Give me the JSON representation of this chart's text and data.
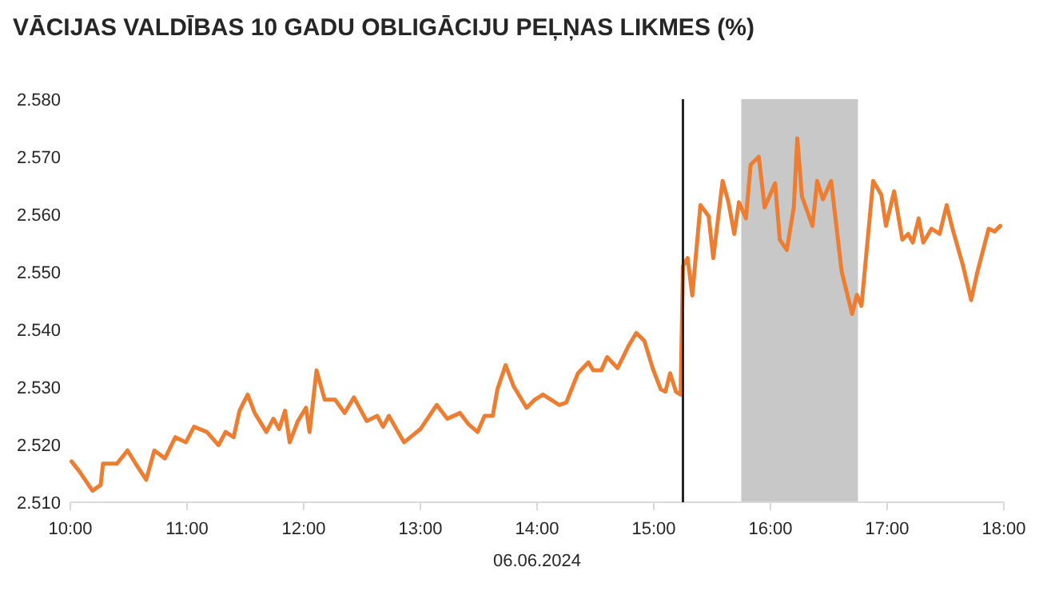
{
  "chart_data": {
    "type": "line",
    "title": "VĀCIJAS VALDĪBAS 10 GADU OBLIGĀCIJU PEĻŅAS LIKMES (%)",
    "xlabel": "06.06.2024",
    "x": [
      10.01,
      10.08,
      10.19,
      10.26,
      10.28,
      10.4,
      10.49,
      10.56,
      10.65,
      10.72,
      10.81,
      10.9,
      10.99,
      11.06,
      11.17,
      11.27,
      11.33,
      11.4,
      11.45,
      11.52,
      11.58,
      11.68,
      11.74,
      11.79,
      11.84,
      11.88,
      11.95,
      12.02,
      12.05,
      12.11,
      12.18,
      12.27,
      12.35,
      12.43,
      12.54,
      12.63,
      12.68,
      12.73,
      12.86,
      13.0,
      13.14,
      13.23,
      13.34,
      13.41,
      13.49,
      13.55,
      13.62,
      13.66,
      13.73,
      13.8,
      13.91,
      13.98,
      14.05,
      14.19,
      14.25,
      14.35,
      14.44,
      14.48,
      14.55,
      14.6,
      14.69,
      14.78,
      14.85,
      14.92,
      14.99,
      15.06,
      15.1,
      15.14,
      15.19,
      15.23,
      15.25,
      15.29,
      15.33,
      15.4,
      15.47,
      15.51,
      15.59,
      15.64,
      15.69,
      15.73,
      15.79,
      15.83,
      15.9,
      15.95,
      16.04,
      16.08,
      16.14,
      16.2,
      16.23,
      16.27,
      16.36,
      16.4,
      16.45,
      16.52,
      16.61,
      16.7,
      16.74,
      16.78,
      16.88,
      16.95,
      16.99,
      17.06,
      17.13,
      17.18,
      17.22,
      17.27,
      17.31,
      17.38,
      17.45,
      17.51,
      17.56,
      17.65,
      17.72,
      17.77,
      17.87,
      17.92,
      17.97
    ],
    "series": [
      {
        "color": "#ed7d31",
        "values": [
          2.5171,
          2.5153,
          2.512,
          2.513,
          2.5167,
          2.5167,
          2.519,
          2.5167,
          2.5139,
          2.519,
          2.5176,
          2.5213,
          2.5204,
          2.5231,
          2.5222,
          2.5199,
          2.5222,
          2.5213,
          2.5259,
          2.5287,
          2.5255,
          2.5222,
          2.5245,
          2.5227,
          2.5259,
          2.5204,
          2.5241,
          2.5264,
          2.5222,
          2.5329,
          2.5278,
          2.5278,
          2.5255,
          2.5282,
          2.5241,
          2.525,
          2.5231,
          2.525,
          2.5204,
          2.5227,
          2.5269,
          2.5245,
          2.5255,
          2.5236,
          2.5222,
          2.525,
          2.525,
          2.5296,
          2.5338,
          2.5301,
          2.5264,
          2.5278,
          2.5287,
          2.5269,
          2.5273,
          2.5324,
          2.5343,
          2.5329,
          2.5329,
          2.5352,
          2.5333,
          2.537,
          2.5394,
          2.538,
          2.5333,
          2.5296,
          2.5292,
          2.5324,
          2.5292,
          2.5287,
          2.551,
          2.5524,
          2.5459,
          2.5616,
          2.5597,
          2.5524,
          2.5658,
          2.5621,
          2.5566,
          2.5621,
          2.5593,
          2.5686,
          2.57,
          2.5612,
          2.5654,
          2.5556,
          2.5538,
          2.5612,
          2.5732,
          2.5631,
          2.558,
          2.5658,
          2.5626,
          2.5658,
          2.5501,
          2.5427,
          2.546,
          2.5441,
          2.5658,
          2.5634,
          2.558,
          2.564,
          2.5556,
          2.5566,
          2.5551,
          2.5593,
          2.5551,
          2.5575,
          2.5566,
          2.5616,
          2.5575,
          2.5511,
          2.5451,
          2.5497,
          2.5575,
          2.557,
          2.558
        ]
      }
    ],
    "xlim": [
      10,
      18
    ],
    "xticks": [
      {
        "value": 10,
        "label": "10:00"
      },
      {
        "value": 11,
        "label": "11:00"
      },
      {
        "value": 12,
        "label": "12:00"
      },
      {
        "value": 13,
        "label": "13:00"
      },
      {
        "value": 14,
        "label": "14:00"
      },
      {
        "value": 15,
        "label": "15:00"
      },
      {
        "value": 16,
        "label": "16:00"
      },
      {
        "value": 17,
        "label": "17:00"
      },
      {
        "value": 18,
        "label": "18:00"
      }
    ],
    "ylim": [
      2.51,
      2.58
    ],
    "yticks": [
      {
        "value": 2.51,
        "label": "2.510"
      },
      {
        "value": 2.52,
        "label": "2.520"
      },
      {
        "value": 2.53,
        "label": "2.530"
      },
      {
        "value": 2.54,
        "label": "2.540"
      },
      {
        "value": 2.55,
        "label": "2.550"
      },
      {
        "value": 2.56,
        "label": "2.560"
      },
      {
        "value": 2.57,
        "label": "2.570"
      },
      {
        "value": 2.58,
        "label": "2.580"
      }
    ],
    "ref_lines": [
      {
        "axis": "x",
        "value": 15.25,
        "color": "#262626"
      }
    ],
    "bands": [
      {
        "axis": "x",
        "from": 15.75,
        "to": 16.75,
        "color": "#c8c8c8"
      }
    ],
    "grid": false,
    "line_style": "solid"
  }
}
